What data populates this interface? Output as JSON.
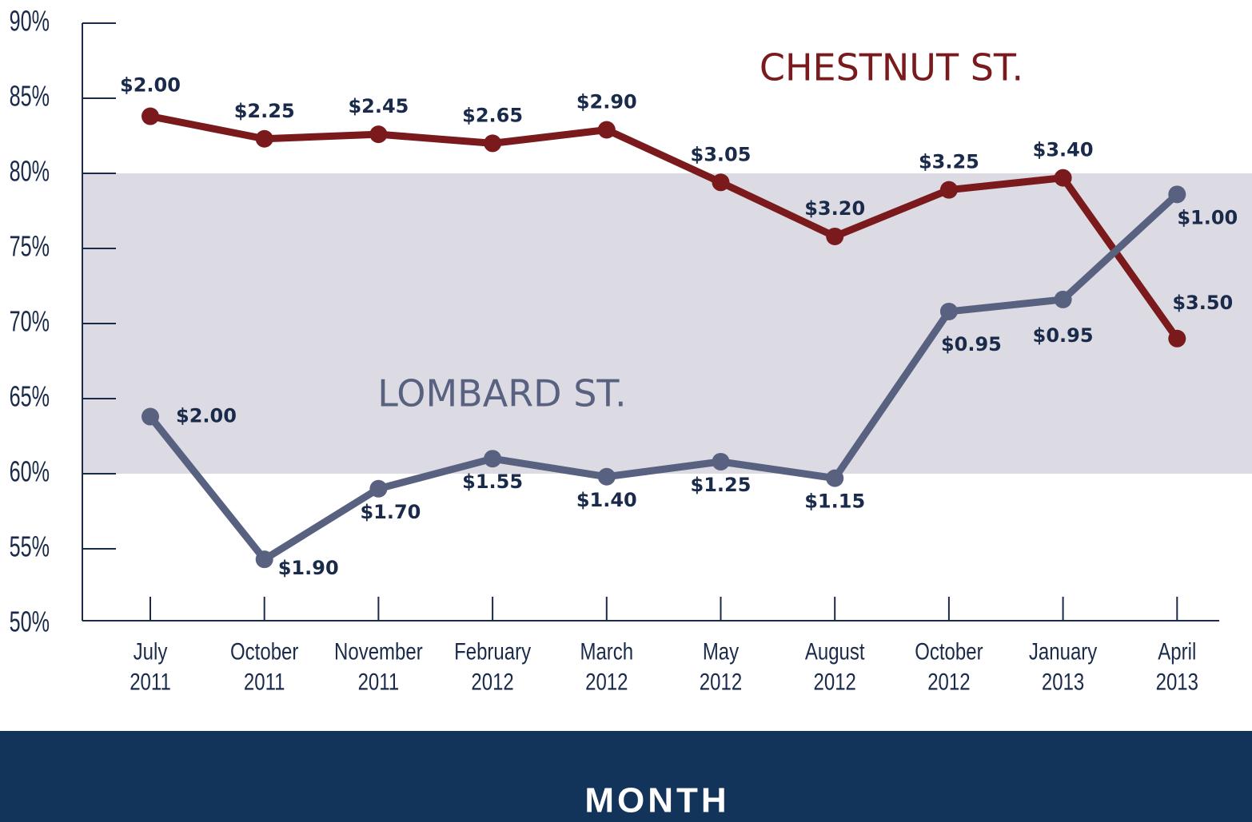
{
  "chart_data": {
    "type": "line",
    "x_title": "MONTH",
    "categories": [
      "July 2011",
      "October 2011",
      "November 2011",
      "February 2012",
      "March 2012",
      "May 2012",
      "August 2012",
      "October 2012",
      "January 2013",
      "April 2013"
    ],
    "series": [
      {
        "name": "CHESTNUT ST.",
        "color": "#7a1a1d",
        "values": [
          83.8,
          82.3,
          82.6,
          82.0,
          82.9,
          79.4,
          75.8,
          78.9,
          79.7,
          69.0
        ],
        "point_labels": [
          "$2.00",
          "$2.25",
          "$2.45",
          "$2.65",
          "$2.90",
          "$3.05",
          "$3.20",
          "$3.25",
          "$3.40",
          "$3.50"
        ]
      },
      {
        "name": "LOMBARD ST.",
        "color": "#596180",
        "values": [
          63.8,
          54.3,
          59.0,
          61.0,
          59.8,
          60.8,
          59.7,
          70.8,
          71.6,
          78.6
        ],
        "point_labels": [
          "$2.00",
          "$1.90",
          "$1.70",
          "$1.55",
          "$1.40",
          "$1.25",
          "$1.15",
          "$0.95",
          "$0.95",
          "$1.00"
        ]
      }
    ],
    "ylim": [
      50,
      90
    ],
    "yticks": [
      {
        "value": 50,
        "label": "50%"
      },
      {
        "value": 55,
        "label": "55%"
      },
      {
        "value": 60,
        "label": "60%"
      },
      {
        "value": 65,
        "label": "65%"
      },
      {
        "value": 70,
        "label": "70%"
      },
      {
        "value": 75,
        "label": "75%"
      },
      {
        "value": 80,
        "label": "80%"
      },
      {
        "value": 85,
        "label": "85%"
      },
      {
        "value": 90,
        "label": "90%"
      }
    ],
    "shaded_range": [
      60,
      80
    ],
    "shade_color": "#dcdbe3",
    "footer_color": "#12335a"
  }
}
